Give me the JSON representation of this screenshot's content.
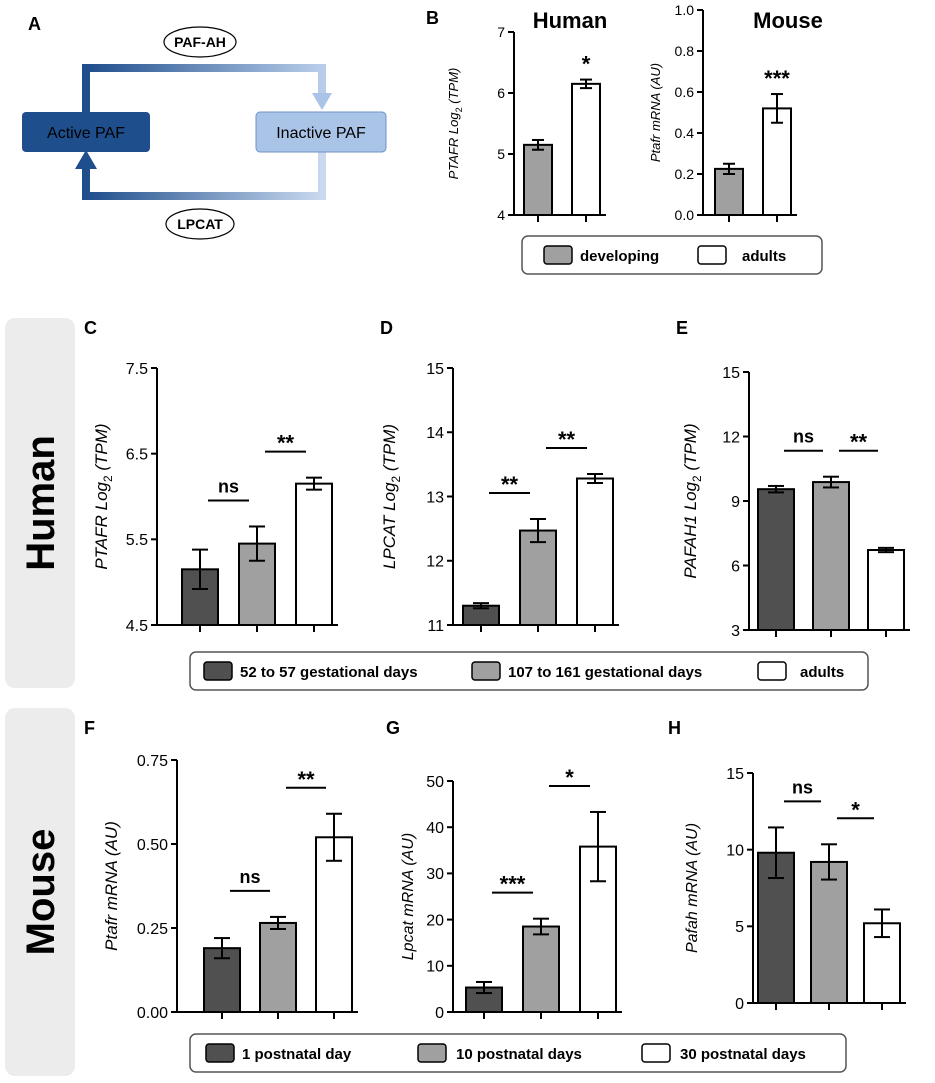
{
  "panel_a": {
    "letter": "A",
    "active_label": "Active PAF",
    "inactive_label": "Inactive PAF",
    "enzyme_top": "PAF-AH",
    "enzyme_bottom": "LPCAT"
  },
  "panel_letters": {
    "b": "B",
    "c": "C",
    "d": "D",
    "e": "E",
    "f": "F",
    "g": "G",
    "h": "H"
  },
  "side_labels": {
    "human": "Human",
    "mouse": "Mouse"
  },
  "legend_b": {
    "items": [
      "developing",
      "adults"
    ]
  },
  "legend_human": {
    "items": [
      "52 to 57 gestational days",
      "107 to 161 gestational days",
      "adults"
    ]
  },
  "legend_mouse": {
    "items": [
      "1 postnatal day",
      "10 postnatal days",
      "30 postnatal days"
    ]
  },
  "colors": {
    "dark": "#505050",
    "medium": "#a0a0a0",
    "white": "#ffffff",
    "blue_dark": "#1f4e8c",
    "blue_light": "#a9c4e6",
    "side_bg": "#ececec",
    "side_text": "#6e6e6e"
  },
  "chart_data": [
    {
      "id": "B-human",
      "type": "bar",
      "title": "Human",
      "ylabel_gene": "PTAFR",
      "ylabel_rest": " Log",
      "ylabel_sub": "2",
      "ylabel_tail": " (TPM)",
      "ylim": [
        4,
        7
      ],
      "yticks": [
        "4",
        "5",
        "6",
        "7"
      ],
      "categories": [
        "developing",
        "adults"
      ],
      "values": [
        5.15,
        6.15
      ],
      "errors": [
        0.08,
        0.07
      ],
      "comparisons": [
        {
          "from": 0,
          "to": 1,
          "label": "*",
          "line": false
        }
      ]
    },
    {
      "id": "B-mouse",
      "type": "bar",
      "title": "Mouse",
      "ylabel_gene": "Ptafr",
      "ylabel_rest": " mRNA (AU)",
      "ylim": [
        0,
        1.0
      ],
      "yticks": [
        "0.0",
        "0.2",
        "0.4",
        "0.6",
        "0.8",
        "1.0"
      ],
      "categories": [
        "developing",
        "adults"
      ],
      "values": [
        0.225,
        0.52
      ],
      "errors": [
        0.025,
        0.07
      ],
      "comparisons": [
        {
          "from": 0,
          "to": 1,
          "label": "***",
          "line": false
        }
      ]
    },
    {
      "id": "C",
      "type": "bar",
      "ylabel_gene": "PTAFR",
      "ylabel_rest": " Log",
      "ylabel_sub": "2",
      "ylabel_tail": " (TPM)",
      "ylim": [
        4.5,
        7.5
      ],
      "yticks": [
        "4.5",
        "5.5",
        "6.5",
        "7.5"
      ],
      "categories": [
        "52 to 57 gestational days",
        "107 to 161 gestational days",
        "adults"
      ],
      "values": [
        5.15,
        5.45,
        6.15
      ],
      "errors": [
        0.23,
        0.2,
        0.07
      ],
      "comparisons": [
        {
          "from": 0,
          "to": 1,
          "label": "ns",
          "line": true
        },
        {
          "from": 1,
          "to": 2,
          "label": "**",
          "line": true
        }
      ]
    },
    {
      "id": "D",
      "type": "bar",
      "ylabel_gene": "LPCAT",
      "ylabel_rest": " Log",
      "ylabel_sub": "2",
      "ylabel_tail": " (TPM)",
      "ylim": [
        11,
        15
      ],
      "yticks": [
        "11",
        "12",
        "13",
        "14",
        "15"
      ],
      "categories": [
        "52 to 57 gestational days",
        "107 to 161 gestational days",
        "adults"
      ],
      "values": [
        11.3,
        12.47,
        13.28
      ],
      "errors": [
        0.04,
        0.18,
        0.07
      ],
      "comparisons": [
        {
          "from": 0,
          "to": 1,
          "label": "**",
          "line": true
        },
        {
          "from": 1,
          "to": 2,
          "label": "**",
          "line": true
        }
      ]
    },
    {
      "id": "E",
      "type": "bar",
      "ylabel_gene": "PAFAH1",
      "ylabel_rest": " Log",
      "ylabel_sub": "2",
      "ylabel_tail": " (TPM)",
      "ylim": [
        3,
        15
      ],
      "yticks": [
        "3",
        "6",
        "9",
        "12",
        "15"
      ],
      "categories": [
        "52 to 57 gestational days",
        "107 to 161 gestational days",
        "adults"
      ],
      "values": [
        9.55,
        9.88,
        6.72
      ],
      "errors": [
        0.15,
        0.25,
        0.1
      ],
      "comparisons": [
        {
          "from": 0,
          "to": 1,
          "label": "ns",
          "line": true
        },
        {
          "from": 1,
          "to": 2,
          "label": "**",
          "line": true
        }
      ]
    },
    {
      "id": "F",
      "type": "bar",
      "ylabel_gene": "Ptafr",
      "ylabel_rest": " mRNA (AU)",
      "ylim": [
        0,
        0.75
      ],
      "yticks": [
        "0.00",
        "0.25",
        "0.50",
        "0.75"
      ],
      "categories": [
        "1 postnatal day",
        "10 postnatal days",
        "30 postnatal days"
      ],
      "values": [
        0.19,
        0.265,
        0.52
      ],
      "errors": [
        0.03,
        0.018,
        0.07
      ],
      "comparisons": [
        {
          "from": 0,
          "to": 1,
          "label": "ns",
          "line": true
        },
        {
          "from": 1,
          "to": 2,
          "label": "**",
          "line": true
        }
      ]
    },
    {
      "id": "G",
      "type": "bar",
      "ylabel_gene": "Lpcat",
      "ylabel_rest": " mRNA (AU)",
      "ylim": [
        0,
        50
      ],
      "yticks": [
        "0",
        "10",
        "20",
        "30",
        "40",
        "50"
      ],
      "categories": [
        "1 postnatal day",
        "10 postnatal days",
        "30 postnatal days"
      ],
      "values": [
        5.3,
        18.5,
        35.8
      ],
      "errors": [
        1.2,
        1.7,
        7.5
      ],
      "comparisons": [
        {
          "from": 0,
          "to": 1,
          "label": "***",
          "line": true
        },
        {
          "from": 1,
          "to": 2,
          "label": "*",
          "line": true
        }
      ]
    },
    {
      "id": "H",
      "type": "bar",
      "ylabel_gene": "Pafah",
      "ylabel_rest": " mRNA (AU)",
      "ylim": [
        0,
        15
      ],
      "yticks": [
        "0",
        "5",
        "10",
        "15"
      ],
      "categories": [
        "1 postnatal day",
        "10 postnatal days",
        "30 postnatal days"
      ],
      "values": [
        9.8,
        9.2,
        5.2
      ],
      "errors": [
        1.65,
        1.15,
        0.9
      ],
      "comparisons": [
        {
          "from": 0,
          "to": 1,
          "label": "ns",
          "line": true
        },
        {
          "from": 1,
          "to": 2,
          "label": "*",
          "line": true
        }
      ]
    }
  ]
}
